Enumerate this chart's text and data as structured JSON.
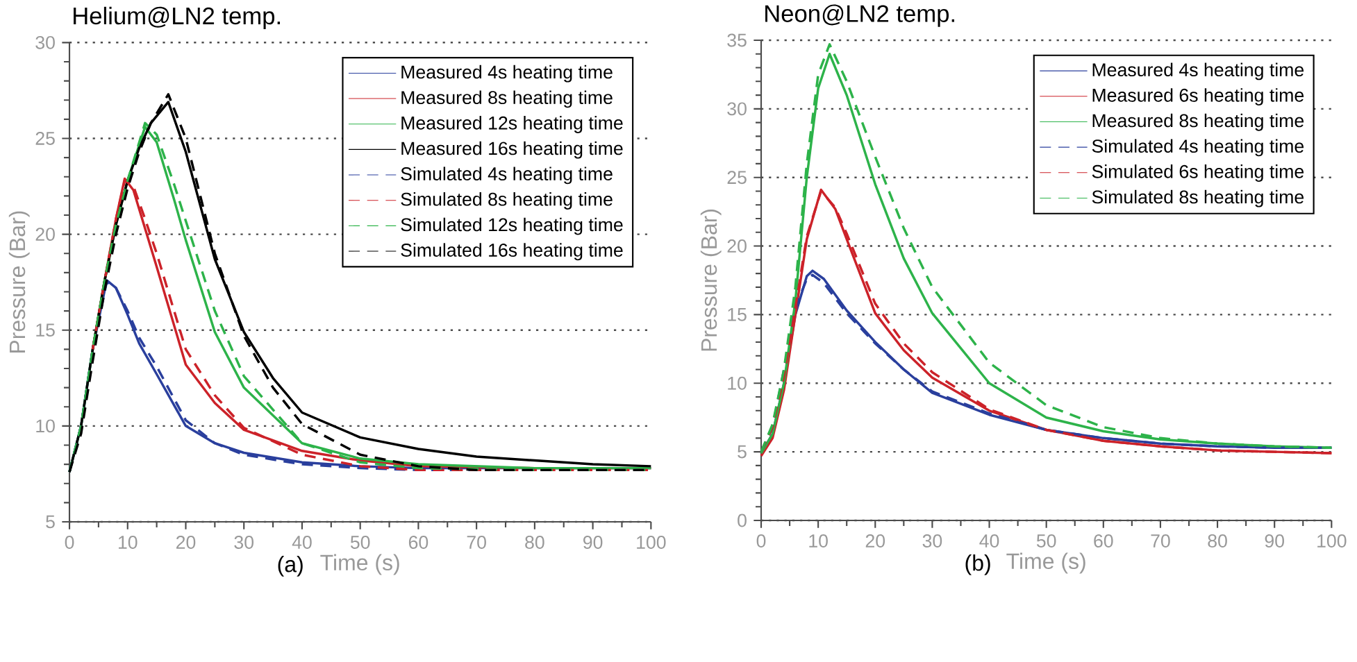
{
  "chart_data": [
    {
      "type": "line",
      "title": "Helium@LN2 temp.",
      "xlabel": "Time (s)",
      "ylabel": "Pressure (Bar)",
      "xlim": [
        0,
        100
      ],
      "ylim": [
        5,
        30
      ],
      "xticks": [
        0,
        10,
        20,
        30,
        40,
        50,
        60,
        70,
        80,
        90,
        100
      ],
      "yticks": [
        5,
        10,
        15,
        20,
        25,
        30
      ],
      "grid": "y",
      "legend": "top right",
      "annotations": [
        "(a)"
      ],
      "series": [
        {
          "name": "Measured 4s heating time",
          "color": "#2a3f9d",
          "line_style": "solid",
          "x": [
            0,
            2,
            4,
            6.4,
            8,
            10,
            12,
            15,
            20,
            25,
            30,
            40,
            50,
            60,
            80,
            100
          ],
          "values": [
            7.6,
            10,
            14,
            17.6,
            17.2,
            15.8,
            14.3,
            12.7,
            10.0,
            9.1,
            8.6,
            8.1,
            7.9,
            7.8,
            7.8,
            7.8
          ]
        },
        {
          "name": "Measured 8s heating time",
          "color": "#cc2229",
          "line_style": "solid",
          "x": [
            4,
            6,
            8,
            9.5,
            11,
            13,
            15,
            20,
            25,
            30,
            40,
            50,
            60,
            80,
            100
          ],
          "values": [
            14,
            17.5,
            20.8,
            22.9,
            22.3,
            20.3,
            18.3,
            13.2,
            11.2,
            9.8,
            8.7,
            8.2,
            7.9,
            7.8,
            7.8
          ]
        },
        {
          "name": "Measured 12s heating time",
          "color": "#2db34a",
          "line_style": "solid",
          "x": [
            0,
            2,
            4,
            6,
            8,
            10,
            13,
            15,
            18,
            20,
            25,
            30,
            40,
            50,
            60,
            80,
            100
          ],
          "values": [
            7.6,
            10,
            14,
            17.5,
            20.5,
            22.8,
            25.6,
            24.8,
            21.8,
            19.7,
            14.9,
            12.0,
            9.1,
            8.3,
            8.0,
            7.8,
            7.8
          ]
        },
        {
          "name": "Measured 16s heating time",
          "color": "#000000",
          "line_style": "solid",
          "x": [
            0,
            2,
            4,
            6,
            8,
            10,
            12,
            14,
            17,
            20,
            25,
            30,
            35,
            40,
            50,
            60,
            70,
            80,
            90,
            100
          ],
          "values": [
            7.6,
            10,
            14,
            17.5,
            20.5,
            22.8,
            24.5,
            25.8,
            26.9,
            24.3,
            18.7,
            14.9,
            12.5,
            10.7,
            9.4,
            8.8,
            8.4,
            8.2,
            8.0,
            7.9
          ]
        },
        {
          "name": "Simulated 4s heating time",
          "color": "#2a3f9d",
          "line_style": "dashed",
          "x": [
            0,
            2,
            4,
            6.4,
            8,
            10,
            12,
            15,
            20,
            25,
            30,
            40,
            50,
            60,
            80,
            100
          ],
          "values": [
            7.6,
            10,
            14,
            17.5,
            17.2,
            16.0,
            14.6,
            13.1,
            10.3,
            9.1,
            8.5,
            8.0,
            7.8,
            7.7,
            7.7,
            7.7
          ]
        },
        {
          "name": "Simulated 8s heating time",
          "color": "#cc2229",
          "line_style": "dashed",
          "x": [
            4,
            6,
            8,
            9.5,
            11,
            13,
            15,
            20,
            25,
            30,
            40,
            50,
            60,
            80,
            100
          ],
          "values": [
            14,
            17.5,
            20.8,
            22.8,
            22.5,
            20.8,
            19.0,
            14.0,
            11.6,
            9.9,
            8.5,
            7.9,
            7.7,
            7.7,
            7.7
          ]
        },
        {
          "name": "Simulated 12s heating time",
          "color": "#2db34a",
          "line_style": "dashed",
          "x": [
            0,
            2,
            4,
            6,
            8,
            10,
            13,
            15,
            18,
            20,
            25,
            30,
            40,
            50,
            60,
            80,
            100
          ],
          "values": [
            7.6,
            10,
            14,
            17.5,
            20.5,
            22.8,
            25.8,
            25.2,
            22.6,
            20.7,
            16.0,
            12.6,
            9.1,
            8.1,
            7.8,
            7.7,
            7.7
          ]
        },
        {
          "name": "Simulated 16s heating time",
          "color": "#000000",
          "line_style": "dashed",
          "x": [
            0,
            2,
            4,
            6,
            8,
            10,
            12,
            14,
            17,
            20,
            25,
            30,
            35,
            40,
            50,
            60,
            70,
            80,
            90,
            100
          ],
          "values": [
            7.6,
            9.6,
            13.4,
            17.0,
            20.0,
            22.4,
            24.3,
            25.8,
            27.3,
            25.0,
            19.0,
            14.7,
            12.0,
            10.1,
            8.5,
            7.9,
            7.7,
            7.7,
            7.7,
            7.7
          ]
        }
      ]
    },
    {
      "type": "line",
      "title": "Neon@LN2 temp.",
      "xlabel": "Time (s)",
      "ylabel": "Pressure (Bar)",
      "xlim": [
        0,
        100
      ],
      "ylim": [
        0,
        35
      ],
      "xticks": [
        0,
        10,
        20,
        30,
        40,
        50,
        60,
        70,
        80,
        90,
        100
      ],
      "yticks": [
        0,
        5,
        10,
        15,
        20,
        25,
        30,
        35
      ],
      "grid": "y",
      "legend": "top right",
      "annotations": [
        "(b)"
      ],
      "series": [
        {
          "name": "Measured 4s heating time",
          "color": "#2a3f9d",
          "line_style": "solid",
          "x": [
            0,
            2,
            4,
            6,
            8,
            9,
            11,
            15,
            20,
            25,
            30,
            40,
            50,
            60,
            70,
            80,
            90,
            100
          ],
          "values": [
            4.9,
            6.3,
            10,
            15,
            17.8,
            18.2,
            17.6,
            15.3,
            13.0,
            11.0,
            9.3,
            7.7,
            6.6,
            6.0,
            5.6,
            5.4,
            5.3,
            5.3
          ]
        },
        {
          "name": "Measured 6s heating time",
          "color": "#cc2229",
          "line_style": "solid",
          "x": [
            0,
            2,
            4,
            6,
            8,
            10.5,
            13,
            15,
            20,
            25,
            30,
            40,
            50,
            60,
            70,
            80,
            90,
            100
          ],
          "values": [
            4.7,
            6.0,
            9.5,
            15,
            20.5,
            24.1,
            22.7,
            20.5,
            15.1,
            12.4,
            10.4,
            8.0,
            6.6,
            5.8,
            5.4,
            5.1,
            5.0,
            4.9
          ]
        },
        {
          "name": "Measured 8s heating time",
          "color": "#2db34a",
          "line_style": "solid",
          "x": [
            0,
            2,
            4,
            6,
            8,
            10,
            12,
            15,
            20,
            25,
            30,
            40,
            50,
            60,
            70,
            80,
            90,
            100
          ],
          "values": [
            4.9,
            6.3,
            10,
            16,
            25,
            31.5,
            34.0,
            31.0,
            24.5,
            19.1,
            15.1,
            10.0,
            7.5,
            6.5,
            5.9,
            5.6,
            5.4,
            5.3
          ]
        },
        {
          "name": "Simulated 4s heating time",
          "color": "#2a3f9d",
          "line_style": "dashed",
          "x": [
            0,
            2,
            4,
            6,
            8,
            9,
            11,
            15,
            20,
            25,
            30,
            40,
            50,
            60,
            70,
            80,
            90,
            100
          ],
          "values": [
            5.0,
            6.8,
            11,
            15.5,
            17.6,
            17.9,
            17.3,
            15.1,
            12.9,
            11.0,
            9.4,
            7.8,
            6.6,
            6.0,
            5.6,
            5.4,
            5.3,
            5.3
          ]
        },
        {
          "name": "Simulated 6s heating time",
          "color": "#cc2229",
          "line_style": "dashed",
          "x": [
            0,
            2,
            4,
            6,
            8,
            10.5,
            13,
            15,
            20,
            25,
            30,
            40,
            50,
            60,
            70,
            80,
            90,
            100
          ],
          "values": [
            5.0,
            6.8,
            10.5,
            15.5,
            20.7,
            24.0,
            22.8,
            20.9,
            15.8,
            12.9,
            10.8,
            8.1,
            6.6,
            5.8,
            5.4,
            5.1,
            5.0,
            4.9
          ]
        },
        {
          "name": "Simulated 8s heating time",
          "color": "#2db34a",
          "line_style": "dashed",
          "x": [
            0,
            2,
            4,
            6,
            8,
            10,
            12,
            15,
            20,
            25,
            30,
            40,
            50,
            60,
            70,
            80,
            90,
            100
          ],
          "values": [
            5.0,
            7.0,
            11,
            17,
            26,
            32.5,
            34.7,
            32.0,
            26.5,
            21.3,
            17.0,
            11.5,
            8.4,
            6.8,
            6.0,
            5.6,
            5.4,
            5.3
          ]
        }
      ]
    }
  ]
}
